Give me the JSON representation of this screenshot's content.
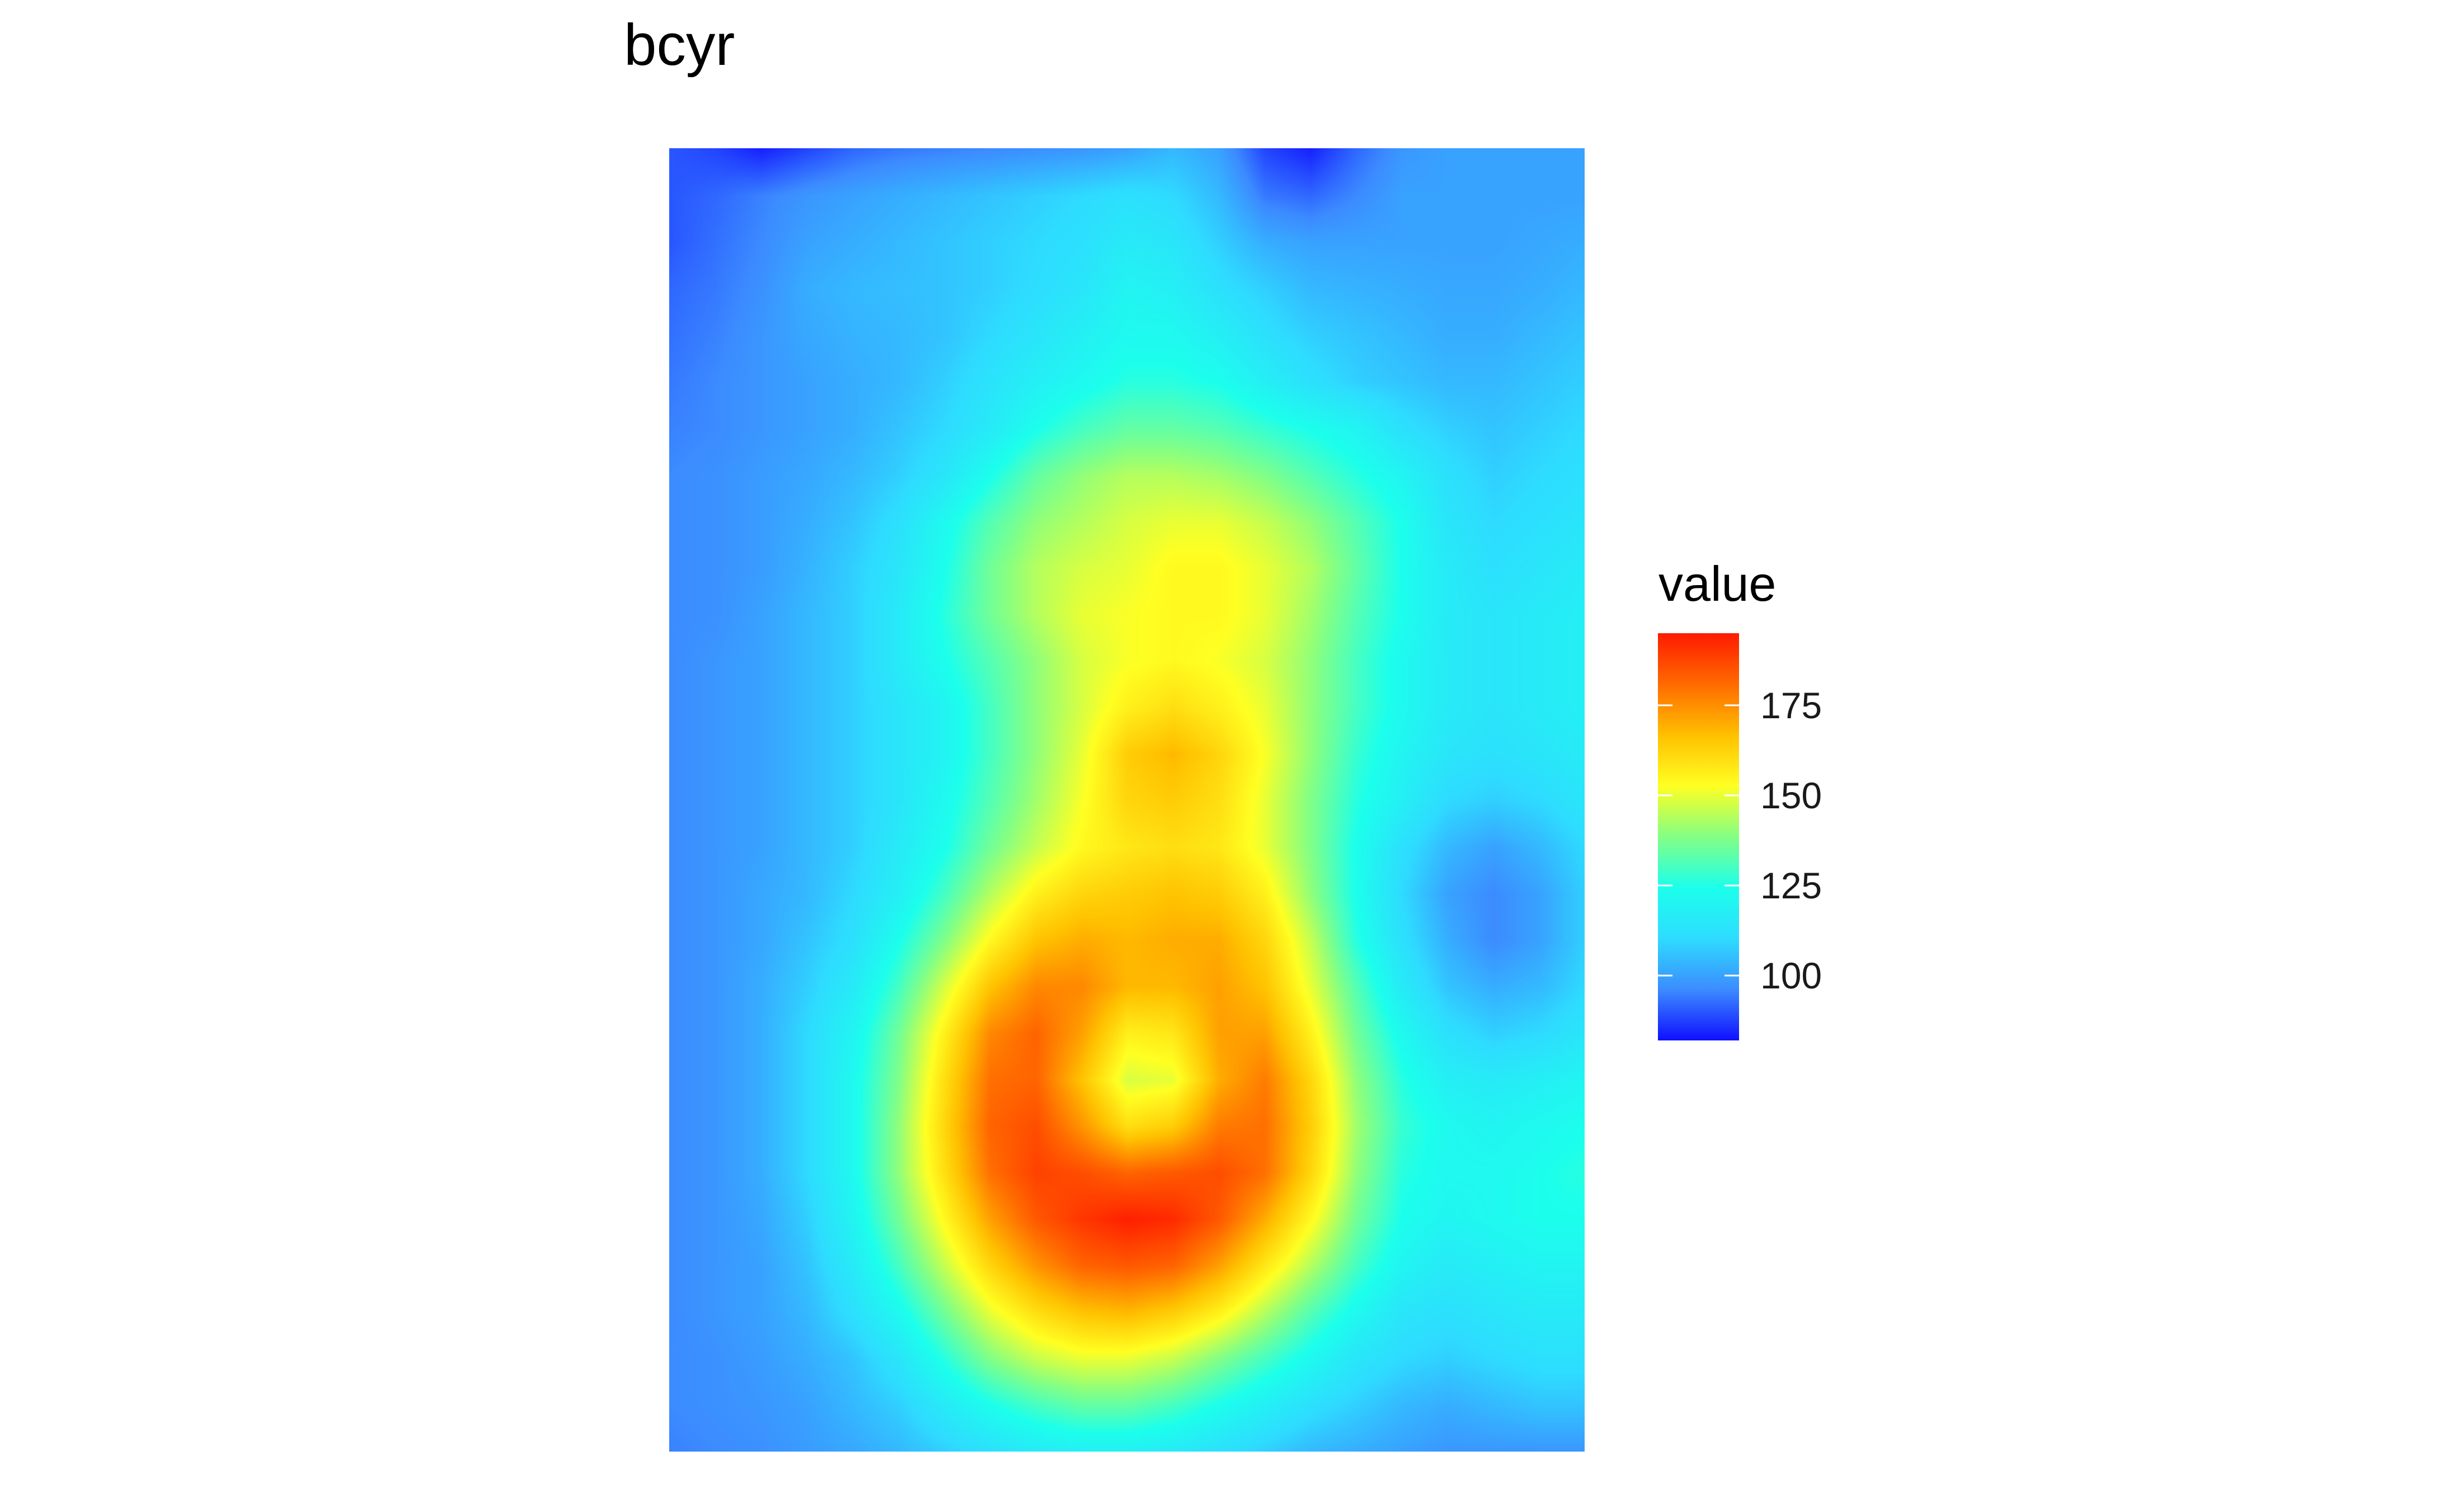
{
  "chart_data": {
    "type": "heatmap",
    "title": "bcyr",
    "xlabel": "",
    "ylabel": "",
    "grid": false,
    "legend": {
      "title": "value",
      "placement": "right",
      "ticks": [
        100,
        125,
        150,
        175
      ],
      "range": [
        82,
        195
      ]
    },
    "colorscale": [
      "#1010ff",
      "#3c8cff",
      "#2edcff",
      "#1cffec",
      "#84ff84",
      "#ffff22",
      "#ffc000",
      "#ff6a00",
      "#ff1a00"
    ],
    "grid_shape": [
      29,
      21
    ],
    "z": [
      [
        90,
        88,
        84,
        88,
        92,
        94,
        95,
        96,
        97,
        98,
        100,
        104,
        100,
        88,
        84,
        92,
        98,
        100,
        100,
        100,
        100
      ],
      [
        90,
        92,
        95,
        98,
        100,
        102,
        104,
        106,
        108,
        110,
        112,
        110,
        104,
        94,
        92,
        96,
        100,
        100,
        100,
        100,
        100
      ],
      [
        90,
        93,
        96,
        100,
        102,
        104,
        106,
        108,
        110,
        112,
        116,
        114,
        108,
        102,
        100,
        100,
        100,
        100,
        100,
        101,
        102
      ],
      [
        92,
        94,
        97,
        102,
        104,
        105,
        106,
        108,
        111,
        114,
        120,
        118,
        112,
        108,
        104,
        103,
        102,
        101,
        101,
        102,
        104
      ],
      [
        93,
        95,
        98,
        101,
        103,
        104,
        106,
        110,
        114,
        118,
        122,
        122,
        118,
        112,
        108,
        106,
        104,
        102,
        102,
        104,
        106
      ],
      [
        94,
        96,
        98,
        100,
        102,
        104,
        108,
        113,
        118,
        122,
        126,
        126,
        124,
        118,
        112,
        108,
        106,
        104,
        104,
        106,
        108
      ],
      [
        95,
        96,
        98,
        100,
        102,
        106,
        110,
        116,
        124,
        130,
        134,
        134,
        132,
        128,
        124,
        120,
        112,
        108,
        106,
        108,
        110
      ],
      [
        96,
        97,
        99,
        101,
        104,
        108,
        114,
        124,
        134,
        140,
        144,
        144,
        142,
        138,
        132,
        126,
        120,
        112,
        108,
        110,
        112
      ],
      [
        96,
        97,
        99,
        102,
        106,
        112,
        122,
        132,
        140,
        144,
        148,
        150,
        150,
        146,
        140,
        132,
        124,
        114,
        110,
        112,
        114
      ],
      [
        96,
        97,
        99,
        103,
        108,
        114,
        124,
        136,
        144,
        148,
        150,
        154,
        154,
        150,
        144,
        134,
        124,
        116,
        112,
        114,
        116
      ],
      [
        96,
        97,
        100,
        104,
        108,
        116,
        126,
        136,
        144,
        150,
        152,
        154,
        154,
        150,
        142,
        132,
        124,
        116,
        114,
        116,
        118
      ],
      [
        96,
        98,
        100,
        104,
        108,
        116,
        124,
        132,
        140,
        148,
        152,
        154,
        152,
        148,
        140,
        130,
        122,
        116,
        114,
        116,
        118
      ],
      [
        96,
        98,
        100,
        104,
        108,
        114,
        120,
        130,
        140,
        148,
        156,
        160,
        156,
        150,
        140,
        130,
        122,
        116,
        114,
        116,
        118
      ],
      [
        96,
        98,
        100,
        104,
        108,
        114,
        120,
        130,
        140,
        150,
        164,
        168,
        162,
        152,
        140,
        128,
        120,
        114,
        112,
        114,
        116
      ],
      [
        96,
        98,
        100,
        104,
        108,
        114,
        122,
        132,
        142,
        152,
        162,
        164,
        160,
        150,
        138,
        126,
        118,
        110,
        108,
        110,
        114
      ],
      [
        96,
        98,
        100,
        104,
        108,
        116,
        124,
        136,
        146,
        154,
        158,
        160,
        158,
        150,
        138,
        124,
        112,
        104,
        100,
        104,
        110
      ],
      [
        96,
        98,
        101,
        104,
        110,
        118,
        130,
        144,
        156,
        162,
        164,
        166,
        164,
        156,
        140,
        124,
        110,
        100,
        96,
        100,
        108
      ],
      [
        96,
        98,
        101,
        106,
        112,
        124,
        138,
        154,
        166,
        170,
        168,
        170,
        170,
        162,
        146,
        126,
        112,
        102,
        96,
        100,
        108
      ],
      [
        96,
        98,
        102,
        108,
        116,
        130,
        148,
        166,
        176,
        176,
        168,
        168,
        172,
        166,
        150,
        132,
        116,
        106,
        102,
        104,
        110
      ],
      [
        96,
        98,
        102,
        110,
        120,
        136,
        156,
        176,
        182,
        172,
        156,
        158,
        172,
        172,
        156,
        136,
        122,
        112,
        108,
        110,
        114
      ],
      [
        96,
        98,
        102,
        110,
        122,
        138,
        160,
        180,
        182,
        166,
        148,
        150,
        170,
        178,
        162,
        140,
        126,
        118,
        116,
        118,
        120
      ],
      [
        96,
        98,
        102,
        110,
        122,
        140,
        162,
        182,
        186,
        174,
        160,
        164,
        178,
        180,
        164,
        142,
        128,
        122,
        120,
        122,
        124
      ],
      [
        96,
        98,
        102,
        110,
        122,
        140,
        160,
        180,
        188,
        186,
        182,
        184,
        186,
        180,
        162,
        140,
        126,
        122,
        122,
        124,
        126
      ],
      [
        96,
        98,
        101,
        108,
        120,
        136,
        154,
        172,
        184,
        190,
        194,
        192,
        184,
        170,
        154,
        136,
        124,
        120,
        122,
        124,
        124
      ],
      [
        96,
        98,
        100,
        106,
        116,
        130,
        146,
        162,
        174,
        182,
        184,
        182,
        172,
        158,
        144,
        130,
        120,
        116,
        118,
        120,
        120
      ],
      [
        96,
        98,
        100,
        104,
        112,
        122,
        136,
        150,
        160,
        166,
        168,
        164,
        156,
        144,
        132,
        122,
        114,
        112,
        114,
        116,
        116
      ],
      [
        96,
        97,
        99,
        102,
        106,
        114,
        126,
        138,
        146,
        150,
        150,
        146,
        138,
        130,
        122,
        114,
        110,
        108,
        110,
        112,
        112
      ],
      [
        96,
        97,
        98,
        100,
        104,
        108,
        116,
        124,
        130,
        134,
        134,
        130,
        124,
        118,
        112,
        108,
        104,
        102,
        104,
        106,
        106
      ],
      [
        95,
        96,
        97,
        99,
        101,
        104,
        108,
        112,
        116,
        118,
        118,
        116,
        112,
        108,
        104,
        102,
        100,
        98,
        98,
        98,
        98
      ]
    ]
  }
}
